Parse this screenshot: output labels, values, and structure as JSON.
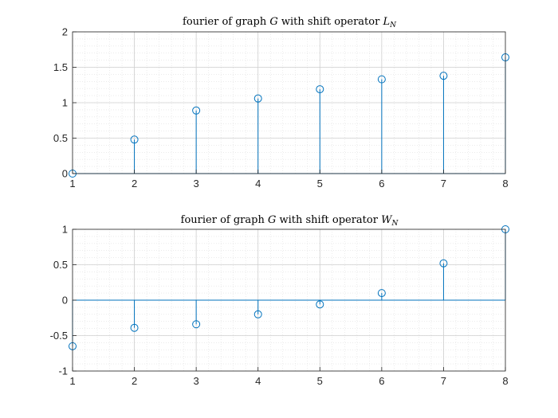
{
  "chart_data": [
    {
      "type": "stem",
      "title": "fourier of graph G with shift operator L_N",
      "title_parts": {
        "prefix": "fourier of graph ",
        "graph": "G",
        "middle": " with shift operator ",
        "op": "L",
        "sub": "N"
      },
      "xlabel": "",
      "ylabel": "",
      "xlim": [
        1,
        8
      ],
      "ylim": [
        0,
        2
      ],
      "xticks": [
        "1",
        "2",
        "3",
        "4",
        "5",
        "6",
        "7",
        "8"
      ],
      "yticks": [
        "0",
        "0.5",
        "1",
        "1.5",
        "2"
      ],
      "grid": true,
      "minor_grid": true,
      "x": [
        1,
        2,
        3,
        4,
        5,
        6,
        7,
        8
      ],
      "values": [
        0.0,
        0.48,
        0.89,
        1.06,
        1.19,
        1.33,
        1.38,
        1.64
      ]
    },
    {
      "type": "stem",
      "title": "fourier of graph G with shift operator W_N",
      "title_parts": {
        "prefix": "fourier of graph ",
        "graph": "G",
        "middle": " with shift operator ",
        "op": "W",
        "sub": "N"
      },
      "xlabel": "",
      "ylabel": "",
      "xlim": [
        1,
        8
      ],
      "ylim": [
        -1,
        1
      ],
      "xticks": [
        "1",
        "2",
        "3",
        "4",
        "5",
        "6",
        "7",
        "8"
      ],
      "yticks": [
        "-1",
        "-0.5",
        "0",
        "0.5",
        "1"
      ],
      "grid": true,
      "minor_grid": true,
      "x": [
        1,
        2,
        3,
        4,
        5,
        6,
        7,
        8
      ],
      "values": [
        -0.65,
        -0.39,
        -0.34,
        -0.2,
        -0.06,
        0.1,
        0.52,
        1.0
      ]
    }
  ],
  "colors": {
    "series": "#0072BD",
    "grid": "#DFDFDF",
    "axes": "#262626",
    "background": "#ffffff"
  }
}
